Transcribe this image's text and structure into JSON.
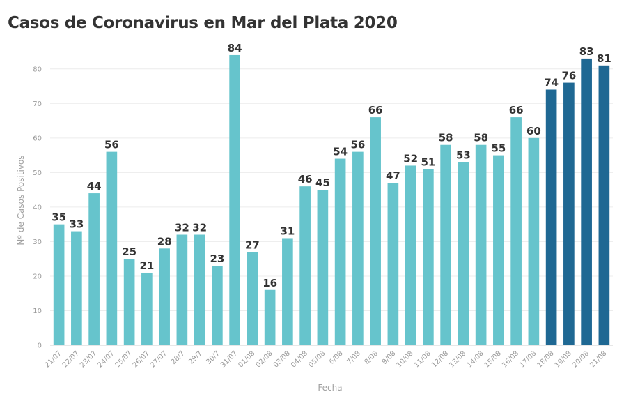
{
  "chart_data": {
    "type": "bar",
    "title": "Casos de Coronavirus en Mar del Plata 2020",
    "xlabel": "Fecha",
    "ylabel": "Nº de Casos Positivos",
    "ylim": [
      0,
      85
    ],
    "yticks": [
      0,
      10,
      20,
      30,
      40,
      50,
      60,
      70,
      80
    ],
    "grid": true,
    "categories": [
      "21/07",
      "22/07",
      "23/07",
      "24/07",
      "25/07",
      "26/07",
      "27/07",
      "28/7",
      "29/7",
      "30/7",
      "31/07",
      "01/08",
      "02/08",
      "03/08",
      "04/08",
      "05/08",
      "6/08",
      "7/08",
      "8/08",
      "9/08",
      "10/08",
      "11/08",
      "12/08",
      "13/08",
      "14/08",
      "15/08",
      "16/08",
      "17/08",
      "18/08",
      "19/08",
      "20/08",
      "21/08"
    ],
    "values": [
      35,
      33,
      44,
      56,
      25,
      21,
      28,
      32,
      32,
      23,
      84,
      27,
      16,
      31,
      46,
      45,
      54,
      56,
      66,
      47,
      52,
      51,
      58,
      53,
      58,
      55,
      66,
      60,
      74,
      76,
      83,
      81
    ],
    "colors": [
      "#66c4cc",
      "#66c4cc",
      "#66c4cc",
      "#66c4cc",
      "#66c4cc",
      "#66c4cc",
      "#66c4cc",
      "#66c4cc",
      "#66c4cc",
      "#66c4cc",
      "#66c4cc",
      "#66c4cc",
      "#66c4cc",
      "#66c4cc",
      "#66c4cc",
      "#66c4cc",
      "#66c4cc",
      "#66c4cc",
      "#66c4cc",
      "#66c4cc",
      "#66c4cc",
      "#66c4cc",
      "#66c4cc",
      "#66c4cc",
      "#66c4cc",
      "#66c4cc",
      "#66c4cc",
      "#66c4cc",
      "#1f6893",
      "#1f6893",
      "#1f6893",
      "#1f6893"
    ]
  }
}
